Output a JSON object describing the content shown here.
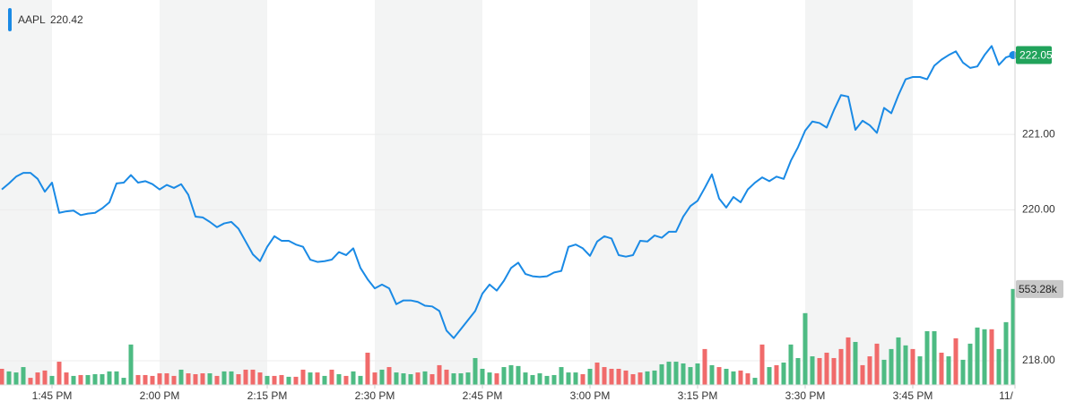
{
  "chart_data": {
    "type": "line",
    "legend_value": 220.42,
    "categories": [
      null,
      null,
      null,
      null,
      null,
      null,
      null,
      "1:45 PM",
      null,
      null,
      null,
      null,
      null,
      null,
      null,
      null,
      null,
      null,
      null,
      null,
      null,
      null,
      "2:00 PM",
      null,
      null,
      null,
      null,
      null,
      null,
      null,
      null,
      null,
      null,
      null,
      null,
      null,
      null,
      "2:15 PM",
      null,
      null,
      null,
      null,
      null,
      null,
      null,
      null,
      null,
      null,
      null,
      null,
      null,
      null,
      "2:30 PM",
      null,
      null,
      null,
      null,
      null,
      null,
      null,
      null,
      null,
      null,
      null,
      null,
      null,
      null,
      "2:45 PM",
      null,
      null,
      null,
      null,
      null,
      null,
      null,
      null,
      null,
      null,
      null,
      null,
      null,
      null,
      "3:00 PM",
      null,
      null,
      null,
      null,
      null,
      null,
      null,
      null,
      null,
      null,
      null,
      null,
      null,
      null,
      "3:15 PM",
      null,
      null,
      null,
      null,
      null,
      null,
      null,
      null,
      null,
      null,
      null,
      null,
      null,
      null,
      "3:30 PM",
      null,
      null,
      null,
      null,
      null,
      null,
      null,
      null,
      null,
      null,
      null,
      null,
      null,
      null,
      "3:45 PM",
      null,
      null,
      null,
      null,
      null,
      null,
      null,
      null,
      null,
      null,
      null,
      null,
      null,
      null,
      "11/"
    ],
    "series": [
      {
        "name": "AAPL",
        "color": "#1a8ae5",
        "values": [
          220.27,
          220.35,
          220.44,
          220.49,
          220.49,
          220.41,
          220.24,
          220.36,
          219.96,
          219.98,
          219.99,
          219.93,
          219.95,
          219.96,
          220.02,
          220.1,
          220.35,
          220.36,
          220.46,
          220.36,
          220.38,
          220.34,
          220.27,
          220.33,
          220.29,
          220.34,
          220.2,
          219.91,
          219.9,
          219.84,
          219.77,
          219.82,
          219.84,
          219.75,
          219.58,
          219.41,
          219.32,
          219.51,
          219.65,
          219.59,
          219.59,
          219.54,
          219.51,
          219.34,
          219.31,
          219.32,
          219.34,
          219.44,
          219.4,
          219.49,
          219.23,
          219.08,
          218.96,
          219.01,
          218.96,
          218.75,
          218.8,
          218.8,
          218.78,
          218.73,
          218.72,
          218.66,
          218.4,
          218.3,
          218.42,
          218.54,
          218.66,
          218.89,
          219.01,
          218.93,
          219.06,
          219.23,
          219.3,
          219.15,
          219.12,
          219.11,
          219.12,
          219.17,
          219.19,
          219.51,
          219.54,
          219.49,
          219.39,
          219.58,
          219.65,
          219.62,
          219.4,
          219.38,
          219.4,
          219.59,
          219.58,
          219.66,
          219.63,
          219.71,
          219.71,
          219.91,
          220.05,
          220.12,
          220.29,
          220.47,
          220.15,
          220.03,
          220.17,
          220.1,
          220.27,
          220.36,
          220.43,
          220.38,
          220.44,
          220.41,
          220.65,
          220.83,
          221.05,
          221.17,
          221.15,
          221.09,
          221.32,
          221.52,
          221.5,
          221.06,
          221.18,
          221.12,
          221.02,
          221.35,
          221.28,
          221.52,
          221.73,
          221.76,
          221.76,
          221.73,
          221.91,
          221.99,
          222.05,
          222.1,
          221.95,
          221.88,
          221.9,
          222.05,
          222.17,
          221.92,
          222.02,
          222.05,
          null
        ]
      }
    ],
    "ylim": [
      217.68,
      222.78
    ],
    "yticks": [
      {
        "value": 218,
        "label": "218.00"
      },
      {
        "value": 220,
        "label": "220.00"
      },
      {
        "value": 221,
        "label": "221.00"
      }
    ],
    "grid": true,
    "volume": {
      "vlim": [
        0,
        2220000
      ],
      "values": [
        93000,
        78000,
        72000,
        103000,
        41000,
        72000,
        83000,
        52000,
        134000,
        72000,
        52000,
        57000,
        57000,
        62000,
        62000,
        78000,
        78000,
        41000,
        233000,
        57000,
        57000,
        52000,
        67000,
        67000,
        52000,
        88000,
        67000,
        62000,
        67000,
        67000,
        52000,
        78000,
        78000,
        62000,
        88000,
        88000,
        72000,
        52000,
        52000,
        57000,
        47000,
        47000,
        88000,
        72000,
        72000,
        52000,
        88000,
        62000,
        52000,
        78000,
        52000,
        186000,
        72000,
        88000,
        103000,
        72000,
        67000,
        62000,
        72000,
        78000,
        62000,
        114000,
        88000,
        67000,
        67000,
        72000,
        155000,
        93000,
        72000,
        67000,
        103000,
        114000,
        109000,
        72000,
        57000,
        67000,
        52000,
        57000,
        103000,
        72000,
        72000,
        62000,
        93000,
        129000,
        103000,
        93000,
        93000,
        83000,
        62000,
        72000,
        78000,
        83000,
        119000,
        134000,
        134000,
        124000,
        103000,
        124000,
        207000,
        114000,
        103000,
        93000,
        78000,
        83000,
        67000,
        41000,
        233000,
        103000,
        114000,
        129000,
        233000,
        155000,
        414000,
        165000,
        155000,
        186000,
        155000,
        207000,
        274000,
        248000,
        114000,
        165000,
        238000,
        145000,
        207000,
        274000,
        228000,
        207000,
        165000,
        310000,
        310000,
        186000,
        165000,
        269000,
        145000,
        238000,
        331000,
        321000,
        321000,
        207000,
        362000,
        553280,
        null
      ],
      "value_labels": [
        null,
        null,
        null,
        null,
        null,
        null,
        null,
        null,
        null,
        null,
        null,
        null,
        null,
        null,
        null,
        null,
        null,
        null,
        null,
        null,
        null,
        null,
        null,
        null,
        null,
        null,
        null,
        null,
        null,
        null,
        null,
        null,
        null,
        null,
        null,
        null,
        null,
        null,
        null,
        null,
        null,
        null,
        null,
        null,
        null,
        null,
        null,
        null,
        null,
        null,
        null,
        null,
        null,
        null,
        null,
        null,
        null,
        null,
        null,
        null,
        null,
        null,
        null,
        null,
        null,
        null,
        null,
        null,
        null,
        null,
        null,
        null,
        null,
        null,
        null,
        null,
        null,
        null,
        null,
        null,
        null,
        null,
        null,
        null,
        null,
        null,
        null,
        null,
        null,
        null,
        null,
        null,
        null,
        null,
        null,
        null,
        null,
        null,
        null,
        null,
        null,
        null,
        null,
        null,
        null,
        null,
        null,
        null,
        null,
        null,
        null,
        null,
        null,
        null,
        null,
        null,
        null,
        null,
        null,
        null,
        null,
        null,
        null,
        null,
        null,
        null,
        null,
        null,
        null,
        null,
        null,
        null,
        null,
        null,
        null,
        null,
        null,
        null,
        null,
        null,
        null,
        "553.28k",
        null
      ],
      "colors": [
        "#f06a6a",
        "#4dbb83",
        "#4dbb83",
        "#4dbb83",
        "#f06a6a",
        "#f06a6a",
        "#f06a6a",
        "#4dbb83",
        "#f06a6a",
        "#f06a6a",
        "#4dbb83",
        "#f06a6a",
        "#4dbb83",
        "#4dbb83",
        "#4dbb83",
        "#4dbb83",
        "#4dbb83",
        "#4dbb83",
        "#4dbb83",
        "#f06a6a",
        "#f06a6a",
        "#f06a6a",
        "#f06a6a",
        "#f06a6a",
        "#f06a6a",
        "#4dbb83",
        "#f06a6a",
        "#f06a6a",
        "#f06a6a",
        "#4dbb83",
        "#f06a6a",
        "#4dbb83",
        "#4dbb83",
        "#f06a6a",
        "#f06a6a",
        "#f06a6a",
        "#f06a6a",
        "#4dbb83",
        "#f06a6a",
        "#f06a6a",
        "#4dbb83",
        "#f06a6a",
        "#f06a6a",
        "#4dbb83",
        "#f06a6a",
        "#4dbb83",
        "#f06a6a",
        "#4dbb83",
        "#f06a6a",
        "#4dbb83",
        "#4dbb83",
        "#f06a6a",
        "#f06a6a",
        "#4dbb83",
        "#f06a6a",
        "#4dbb83",
        "#4dbb83",
        "#4dbb83",
        "#f06a6a",
        "#4dbb83",
        "#f06a6a",
        "#f06a6a",
        "#f06a6a",
        "#4dbb83",
        "#4dbb83",
        "#4dbb83",
        "#4dbb83",
        "#4dbb83",
        "#4dbb83",
        "#f06a6a",
        "#4dbb83",
        "#4dbb83",
        "#4dbb83",
        "#4dbb83",
        "#4dbb83",
        "#4dbb83",
        "#4dbb83",
        "#4dbb83",
        "#4dbb83",
        "#4dbb83",
        "#4dbb83",
        "#f06a6a",
        "#4dbb83",
        "#f06a6a",
        "#f06a6a",
        "#f06a6a",
        "#f06a6a",
        "#f06a6a",
        "#f06a6a",
        "#f06a6a",
        "#4dbb83",
        "#4dbb83",
        "#4dbb83",
        "#4dbb83",
        "#4dbb83",
        "#4dbb83",
        "#4dbb83",
        "#4dbb83",
        "#f06a6a",
        "#4dbb83",
        "#f06a6a",
        "#4dbb83",
        "#4dbb83",
        "#f06a6a",
        "#f06a6a",
        "#4dbb83",
        "#f06a6a",
        "#4dbb83",
        "#f06a6a",
        "#4dbb83",
        "#4dbb83",
        "#4dbb83",
        "#4dbb83",
        "#4dbb83",
        "#f06a6a",
        "#f06a6a",
        "#f06a6a",
        "#f06a6a",
        "#f06a6a",
        "#4dbb83",
        "#f06a6a",
        "#f06a6a",
        "#f06a6a",
        "#4dbb83",
        "#4dbb83",
        "#4dbb83",
        "#4dbb83",
        "#f06a6a",
        "#4dbb83",
        "#4dbb83",
        "#4dbb83",
        "#f06a6a",
        "#4dbb83",
        "#f06a6a",
        "#4dbb83",
        "#4dbb83",
        "#4dbb83",
        "#4dbb83",
        "#f06a6a",
        "#4dbb83",
        "#4dbb83",
        "#4dbb83",
        null
      ]
    }
  }
}
